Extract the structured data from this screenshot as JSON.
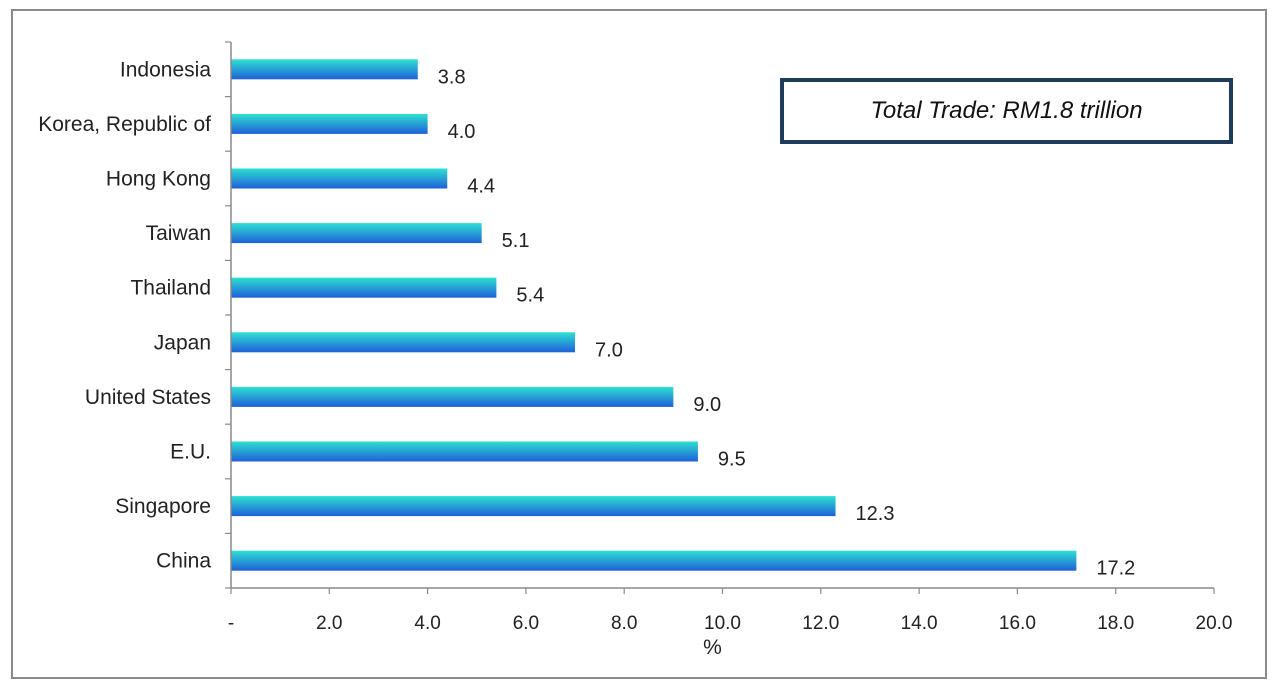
{
  "chart_data": {
    "type": "bar",
    "orientation": "horizontal",
    "categories": [
      "Indonesia",
      "Korea, Republic of",
      "Hong Kong",
      "Taiwan",
      "Thailand",
      "Japan",
      "United States",
      "E.U.",
      "Singapore",
      "China"
    ],
    "values": [
      3.8,
      4.0,
      4.4,
      5.1,
      5.4,
      7.0,
      9.0,
      9.5,
      12.3,
      17.2
    ],
    "value_labels": [
      "3.8",
      "4.0",
      "4.4",
      "5.1",
      "5.4",
      "7.0",
      "9.0",
      "9.5",
      "12.3",
      "17.2"
    ],
    "xlabel": "%",
    "xlim": [
      0,
      20
    ],
    "xticks": [
      0,
      2,
      4,
      6,
      8,
      10,
      12,
      14,
      16,
      18,
      20
    ],
    "xtick_labels": [
      "-",
      "2.0",
      "4.0",
      "6.0",
      "8.0",
      "10.0",
      "12.0",
      "14.0",
      "16.0",
      "18.0",
      "20.0"
    ],
    "annotation": "Total Trade: RM1.8 trillion",
    "grid": false,
    "bar_color_top": "#2ee0d2",
    "bar_color_bottom": "#1f5fd8",
    "annotation_border_color": "#1f3b5e"
  }
}
